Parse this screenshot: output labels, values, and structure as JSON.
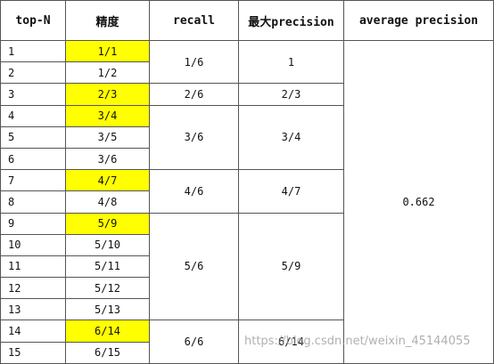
{
  "table": {
    "headers": [
      "top-N",
      "精度",
      "recall",
      "最大precision",
      "average precision"
    ],
    "average_precision": "0.662",
    "groups": [
      {
        "recall": "1/6",
        "max_precision": "1",
        "rows": [
          {
            "top_n": "1",
            "precision": "1/1",
            "highlight": true
          },
          {
            "top_n": "2",
            "precision": "1/2",
            "highlight": false
          }
        ]
      },
      {
        "recall": "2/6",
        "max_precision": "2/3",
        "rows": [
          {
            "top_n": "3",
            "precision": "2/3",
            "highlight": true
          }
        ]
      },
      {
        "recall": "3/6",
        "max_precision": "3/4",
        "rows": [
          {
            "top_n": "4",
            "precision": "3/4",
            "highlight": true
          },
          {
            "top_n": "5",
            "precision": "3/5",
            "highlight": false
          },
          {
            "top_n": "6",
            "precision": "3/6",
            "highlight": false
          }
        ]
      },
      {
        "recall": "4/6",
        "max_precision": "4/7",
        "rows": [
          {
            "top_n": "7",
            "precision": "4/7",
            "highlight": true
          },
          {
            "top_n": "8",
            "precision": "4/8",
            "highlight": false
          }
        ]
      },
      {
        "recall": "5/6",
        "max_precision": "5/9",
        "rows": [
          {
            "top_n": "9",
            "precision": "5/9",
            "highlight": true
          },
          {
            "top_n": "10",
            "precision": "5/10",
            "highlight": false
          },
          {
            "top_n": "11",
            "precision": "5/11",
            "highlight": false
          },
          {
            "top_n": "12",
            "precision": "5/12",
            "highlight": false
          },
          {
            "top_n": "13",
            "precision": "5/13",
            "highlight": false
          }
        ]
      },
      {
        "recall": "6/6",
        "max_precision": "6/14",
        "rows": [
          {
            "top_n": "14",
            "precision": "6/14",
            "highlight": true
          },
          {
            "top_n": "15",
            "precision": "6/15",
            "highlight": false
          }
        ]
      }
    ]
  },
  "watermark": "https://blog.csdn.net/weixin_45144055"
}
